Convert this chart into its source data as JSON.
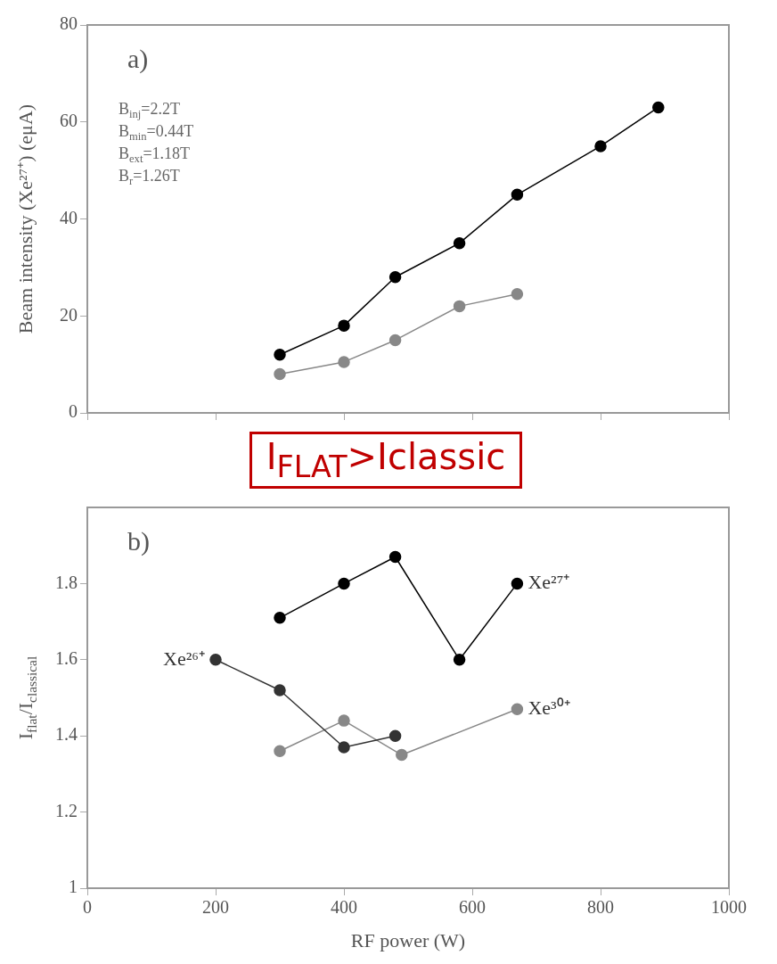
{
  "chart_data": [
    {
      "type": "line",
      "ylabel": "Beam intensity (Xe²⁷⁺) (eμA)",
      "xlim": [
        0,
        1000
      ],
      "xticks": [
        0,
        200,
        400,
        600,
        800,
        1000
      ],
      "ylim": [
        0,
        80
      ],
      "yticks": [
        0,
        20,
        40,
        60,
        80
      ],
      "tick_labels": "y",
      "grid": false,
      "legend": false,
      "marker": "circle",
      "line_style": "solid",
      "annotations": [
        "a)",
        "B$_{inj}$=2.2T",
        "B$_{min}$=0.44T",
        "B$_{ext}$=1.18T",
        "B$_{r}$=1.26T"
      ],
      "series": [
        {
          "color": "#000000",
          "x": [
            300,
            400,
            480,
            580,
            670,
            800,
            890
          ],
          "values": [
            12,
            18,
            28,
            35,
            45,
            55,
            63
          ]
        },
        {
          "color": "#888888",
          "x": [
            300,
            400,
            480,
            580,
            670
          ],
          "values": [
            8,
            10.5,
            15,
            22,
            24.5
          ]
        }
      ]
    },
    {
      "type": "line",
      "xlabel": "RF power (W)",
      "ylabel": "I$_{flat}$/I$_{classical}$",
      "xlim": [
        0,
        1000
      ],
      "xticks": [
        0,
        200,
        400,
        600,
        800,
        1000
      ],
      "ylim": [
        1,
        2
      ],
      "yticks": [
        {
          "value": 1,
          "label": "1"
        },
        1.2,
        1.4,
        1.6,
        1.8
      ],
      "grid": false,
      "legend": false,
      "marker": "circle",
      "line_style": "solid",
      "annotations": [
        "b)",
        "I$_{FLAT}$>Iclassic"
      ],
      "series": [
        {
          "name": "Xe²⁷⁺",
          "color": "#000000",
          "x": [
            300,
            400,
            480,
            580,
            670
          ],
          "values": [
            1.71,
            1.8,
            1.87,
            1.6,
            1.8
          ]
        },
        {
          "name": "Xe²⁶⁺",
          "color": "#333333",
          "x": [
            200,
            300,
            400,
            480
          ],
          "values": [
            1.6,
            1.52,
            1.37,
            1.4
          ]
        },
        {
          "name": "Xe³⁰⁺",
          "color": "#888888",
          "x": [
            300,
            400,
            490,
            670
          ],
          "values": [
            1.36,
            1.44,
            1.35,
            1.47
          ]
        }
      ]
    }
  ]
}
